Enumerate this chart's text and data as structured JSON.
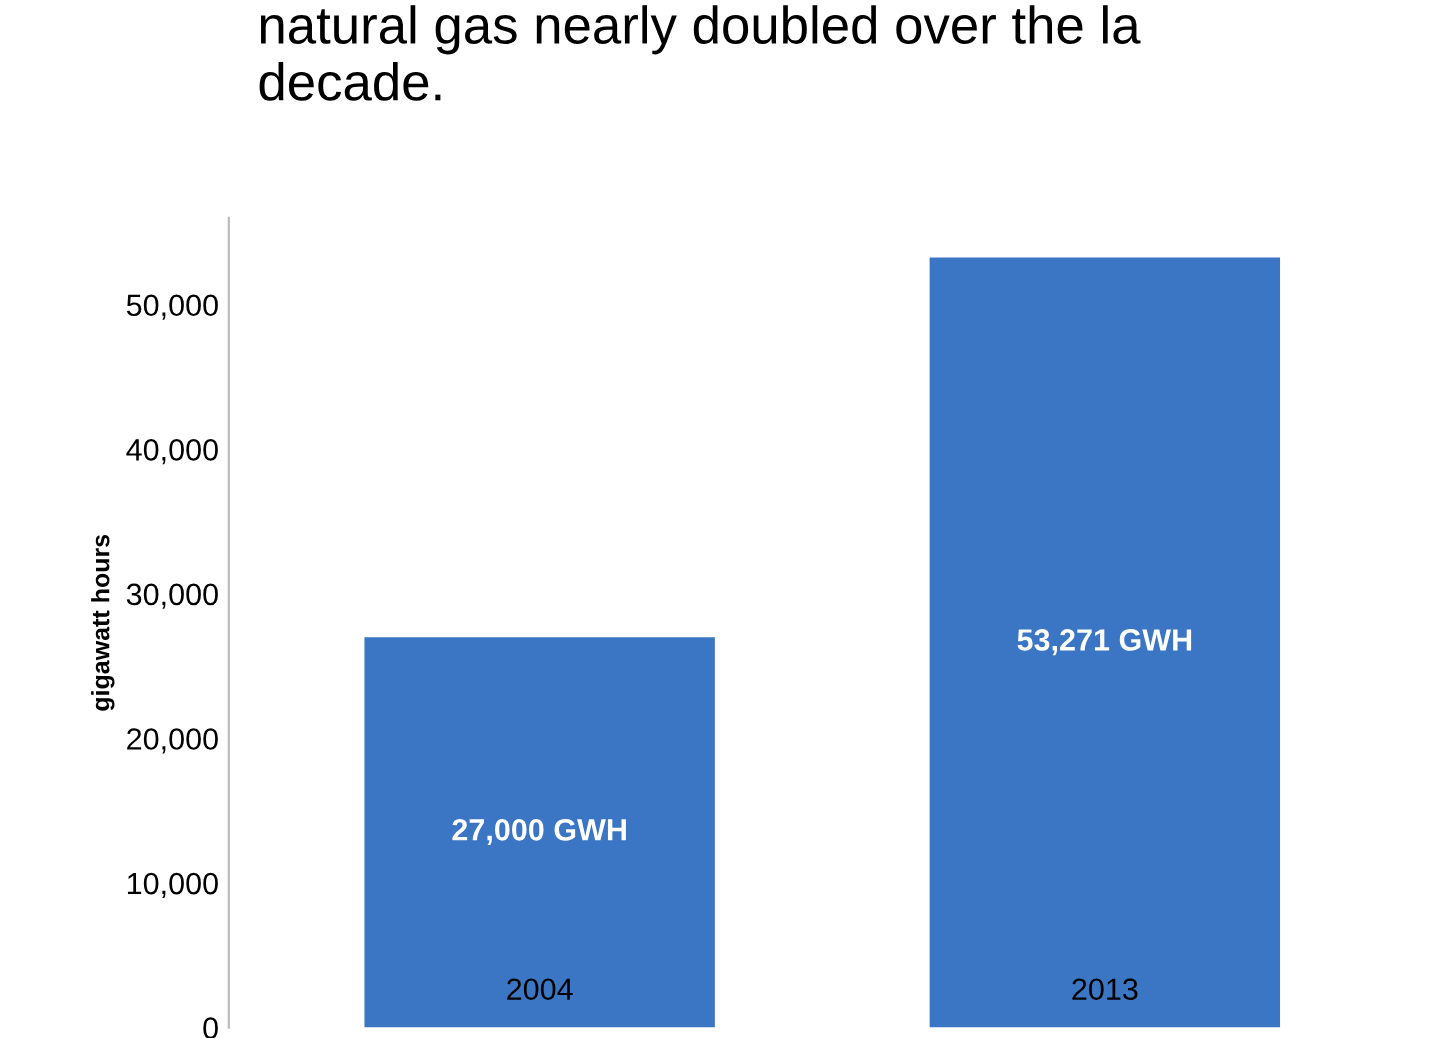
{
  "chart_data": {
    "type": "bar",
    "title": "natural gas nearly doubled over the la\ndecade.",
    "ylabel": "gigawatt hours",
    "categories": [
      "2004",
      "2013"
    ],
    "values": [
      27000,
      53271
    ],
    "value_labels": [
      "27,000 GWH",
      "53,271 GWH"
    ],
    "color": "#3a76c4",
    "ylim": [
      0,
      56000
    ],
    "yticks": [
      {
        "value": 0,
        "label": "0"
      },
      {
        "value": 10000,
        "label": "10,000"
      },
      {
        "value": 20000,
        "label": "20,000"
      },
      {
        "value": 30000,
        "label": "30,000"
      },
      {
        "value": 40000,
        "label": "40,000"
      },
      {
        "value": 50000,
        "label": "50,000"
      }
    ],
    "grid": false
  }
}
